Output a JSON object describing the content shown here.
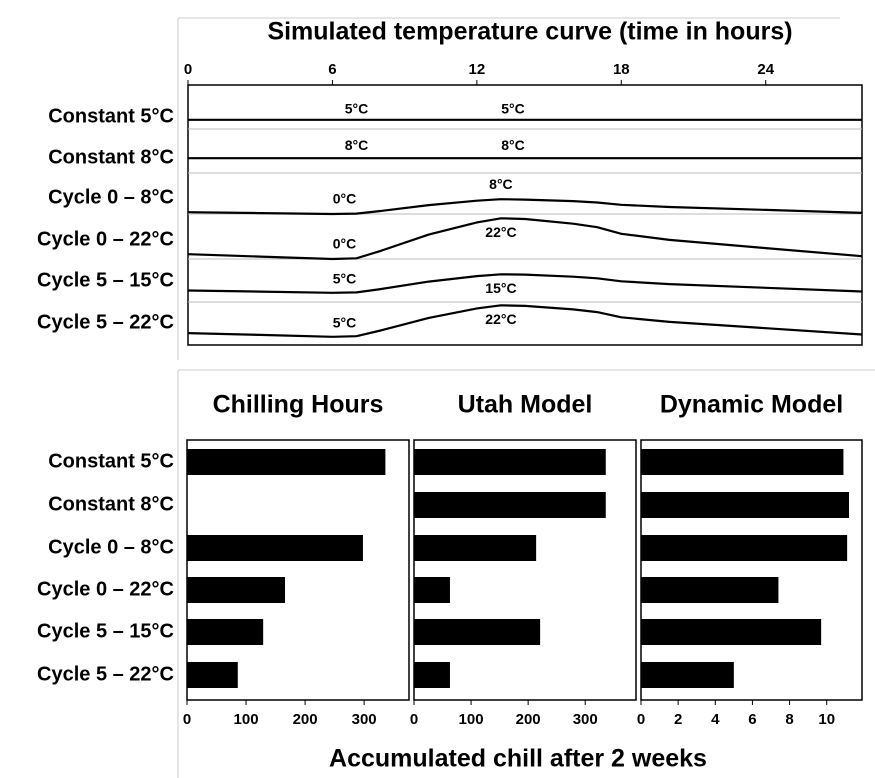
{
  "chart_data": [
    {
      "type": "line",
      "title": "Simulated temperature curve (time in hours)",
      "x": [
        0,
        3,
        6,
        7,
        8,
        10,
        12,
        13,
        14,
        16,
        17,
        18,
        20,
        24,
        28
      ],
      "xlim": [
        0,
        28
      ],
      "xticks": [
        0,
        6,
        12,
        18,
        24
      ],
      "series": [
        {
          "name": "Constant 5°C",
          "color": "#000000",
          "values": [
            5,
            5,
            5,
            5,
            5,
            5,
            5,
            5,
            5,
            5,
            5,
            5,
            5,
            5,
            5
          ],
          "labels": [
            "5°C",
            "5°C"
          ]
        },
        {
          "name": "Constant 8°C",
          "color": "#000000",
          "values": [
            8,
            8,
            8,
            8,
            8,
            8,
            8,
            8,
            8,
            8,
            8,
            8,
            8,
            8,
            8
          ],
          "labels": [
            "8°C",
            "8°C"
          ]
        },
        {
          "name": "Cycle 0 – 8°C",
          "color": "#000000",
          "values": [
            1,
            0.5,
            0,
            0.2,
            1.6,
            4.8,
            7.2,
            8,
            7.8,
            7,
            6.2,
            5,
            3.8,
            2.2,
            0.6
          ],
          "labels": [
            "0°C",
            "8°C"
          ]
        },
        {
          "name": "Cycle 0 – 22°C",
          "color": "#000000",
          "values": [
            2.6,
            1.3,
            0,
            0.4,
            4.4,
            13.2,
            19.8,
            22,
            21.6,
            19.1,
            17.2,
            13.6,
            10.3,
            5.9,
            1.5
          ],
          "labels": [
            "0°C",
            "22°C"
          ]
        },
        {
          "name": "Cycle 5 – 15°C",
          "color": "#000000",
          "values": [
            6.2,
            5.6,
            5,
            5.2,
            7,
            11,
            14,
            15,
            14.8,
            13.7,
            12.8,
            11.2,
            9.7,
            7.7,
            5.7
          ],
          "labels": [
            "5°C",
            "15°C"
          ]
        },
        {
          "name": "Cycle 5 – 22°C",
          "color": "#000000",
          "values": [
            7,
            6,
            5,
            5.3,
            8.4,
            15.2,
            20.3,
            22,
            21.7,
            19.8,
            18.3,
            15.5,
            13,
            9.6,
            6.2
          ],
          "labels": [
            "5°C",
            "22°C"
          ]
        }
      ]
    },
    {
      "type": "barh",
      "title": "Chilling Hours",
      "categories": [
        "Constant 5°C",
        "Constant 8°C",
        "Cycle 0 – 8°C",
        "Cycle 0 – 22°C",
        "Cycle 5 – 15°C",
        "Cycle 5 – 22°C"
      ],
      "values": [
        336,
        0,
        298,
        166,
        129,
        86
      ],
      "color": "#000000",
      "xlim": [
        0,
        376
      ],
      "xticks": [
        0,
        100,
        200,
        300
      ]
    },
    {
      "type": "barh",
      "title": "Utah Model",
      "xlabel": "Accumulated chill after 2 weeks",
      "values": [
        336,
        336,
        214,
        63,
        221,
        63
      ],
      "color": "#000000",
      "xlim": [
        0,
        389
      ],
      "xticks": [
        0,
        100,
        200,
        300
      ]
    },
    {
      "type": "barh",
      "title": "Dynamic Model",
      "values": [
        10.9,
        11.2,
        11.1,
        7.4,
        9.7,
        5.0
      ],
      "color": "#000000",
      "xlim": [
        0,
        11.9
      ],
      "xticks": [
        0,
        2,
        4,
        6,
        8,
        10
      ]
    }
  ]
}
